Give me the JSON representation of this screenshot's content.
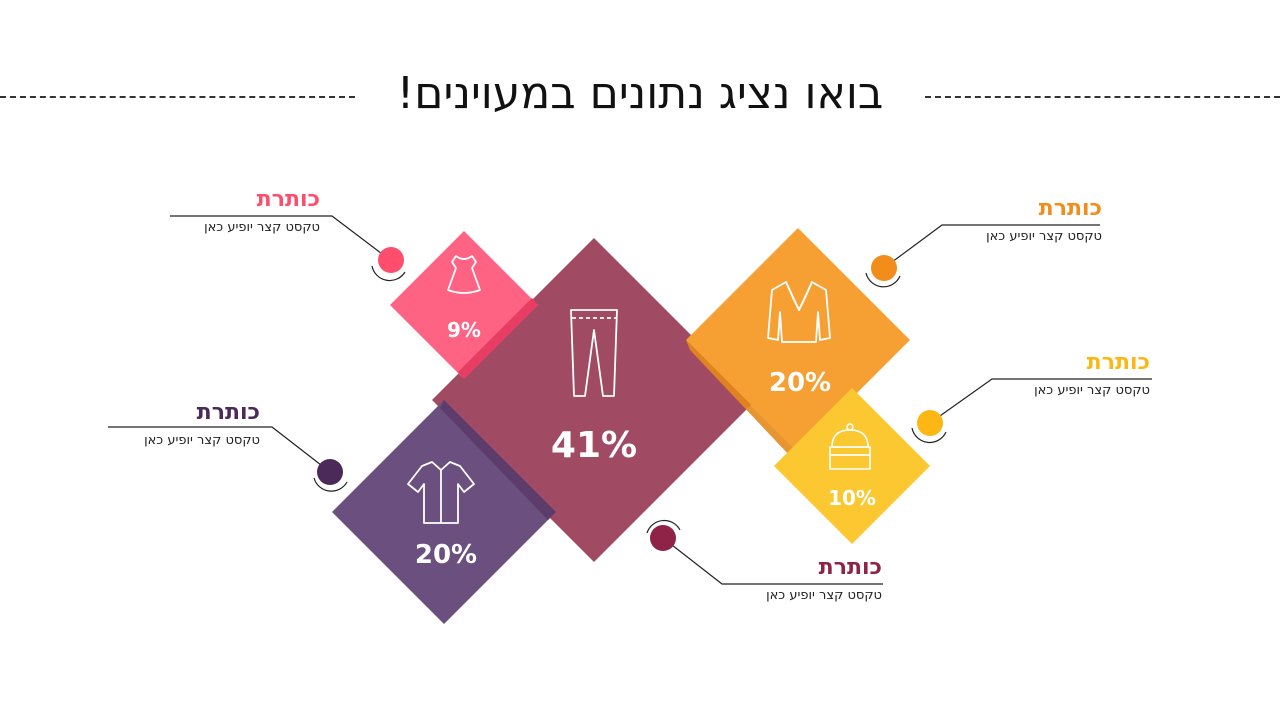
{
  "title": "בואו נציג נתונים במעוינים!",
  "colors": {
    "pink": "#ff6384",
    "maroon": "#a04a64",
    "purple": "#6b4f7e",
    "orange": "#f6a033",
    "yellow": "#fcc832"
  },
  "items": [
    {
      "heading": "כותרת",
      "text": "טקסט קצר יופיע כאן",
      "percent": "9%",
      "icon": "dress-icon",
      "color": "#ff4d6d"
    },
    {
      "heading": "כותרת",
      "text": "טקסט קצר יופיע כאן",
      "percent": "41%",
      "icon": "pants-icon",
      "color": "#8e2247"
    },
    {
      "heading": "כותרת",
      "text": "טקסט קצר יופיע כאן",
      "percent": "20%",
      "icon": "shirt-icon",
      "color": "#4b2a5a"
    },
    {
      "heading": "כותרת",
      "text": "טקסט קצר יופיע כאן",
      "percent": "20%",
      "icon": "jacket-icon",
      "color": "#f28c1a"
    },
    {
      "heading": "כותרת",
      "text": "טקסט קצר יופיע כאן",
      "percent": "10%",
      "icon": "beanie-icon",
      "color": "#fdb714"
    }
  ]
}
